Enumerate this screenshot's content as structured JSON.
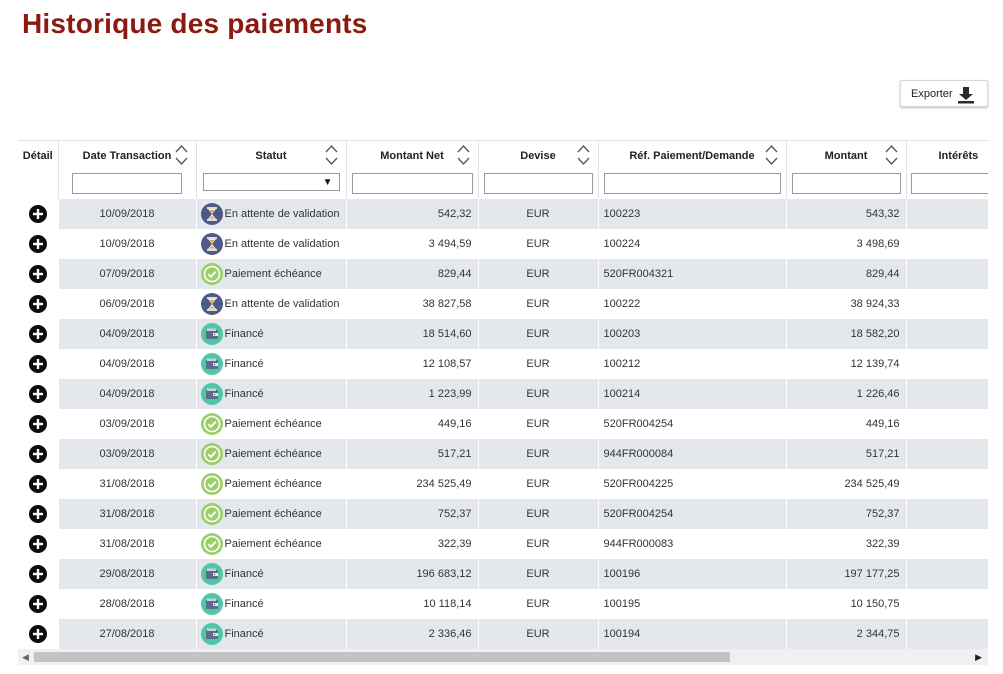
{
  "page": {
    "title": "Historique des paiements"
  },
  "toolbar": {
    "export_label": "Exporter"
  },
  "columns": {
    "detail": "Détail",
    "date": "Date Transaction",
    "status": "Statut",
    "net": "Montant Net",
    "devise": "Devise",
    "ref": "Réf. Paiement/Demande",
    "montant": "Montant",
    "interets": "Intérêts"
  },
  "filters": {
    "status_dropdown_arrow": "▼"
  },
  "icons": {
    "pending": "hourglass-icon",
    "paid": "checkmark-icon",
    "funded": "wallet-icon",
    "detail": "plus-circle-icon",
    "export": "download-icon"
  },
  "colors": {
    "title": "#8b1a10",
    "pending_bg": "#4d5a85",
    "check_bg": "#9ccf6a",
    "wallet_bg": "#4fc7a6"
  },
  "rows": [
    {
      "date": "10/09/2018",
      "status": "En attente de validation",
      "type": "pending",
      "net": "542,32",
      "devise": "EUR",
      "ref": "100223",
      "montant": "543,32"
    },
    {
      "date": "10/09/2018",
      "status": "En attente de validation",
      "type": "pending",
      "net": "3 494,59",
      "devise": "EUR",
      "ref": "100224",
      "montant": "3 498,69"
    },
    {
      "date": "07/09/2018",
      "status": "Paiement échéance",
      "type": "paid",
      "net": "829,44",
      "devise": "EUR",
      "ref": "520FR004321",
      "montant": "829,44"
    },
    {
      "date": "06/09/2018",
      "status": "En attente de validation",
      "type": "pending",
      "net": "38 827,58",
      "devise": "EUR",
      "ref": "100222",
      "montant": "38 924,33"
    },
    {
      "date": "04/09/2018",
      "status": "Financé",
      "type": "funded",
      "net": "18 514,60",
      "devise": "EUR",
      "ref": "100203",
      "montant": "18 582,20"
    },
    {
      "date": "04/09/2018",
      "status": "Financé",
      "type": "funded",
      "net": "12 108,57",
      "devise": "EUR",
      "ref": "100212",
      "montant": "12 139,74"
    },
    {
      "date": "04/09/2018",
      "status": "Financé",
      "type": "funded",
      "net": "1 223,99",
      "devise": "EUR",
      "ref": "100214",
      "montant": "1 226,46"
    },
    {
      "date": "03/09/2018",
      "status": "Paiement échéance",
      "type": "paid",
      "net": "449,16",
      "devise": "EUR",
      "ref": "520FR004254",
      "montant": "449,16"
    },
    {
      "date": "03/09/2018",
      "status": "Paiement échéance",
      "type": "paid",
      "net": "517,21",
      "devise": "EUR",
      "ref": "944FR000084",
      "montant": "517,21"
    },
    {
      "date": "31/08/2018",
      "status": "Paiement échéance",
      "type": "paid",
      "net": "234 525,49",
      "devise": "EUR",
      "ref": "520FR004225",
      "montant": "234 525,49"
    },
    {
      "date": "31/08/2018",
      "status": "Paiement échéance",
      "type": "paid",
      "net": "752,37",
      "devise": "EUR",
      "ref": "520FR004254",
      "montant": "752,37"
    },
    {
      "date": "31/08/2018",
      "status": "Paiement échéance",
      "type": "paid",
      "net": "322,39",
      "devise": "EUR",
      "ref": "944FR000083",
      "montant": "322,39"
    },
    {
      "date": "29/08/2018",
      "status": "Financé",
      "type": "funded",
      "net": "196 683,12",
      "devise": "EUR",
      "ref": "100196",
      "montant": "197 177,25"
    },
    {
      "date": "28/08/2018",
      "status": "Financé",
      "type": "funded",
      "net": "10 118,14",
      "devise": "EUR",
      "ref": "100195",
      "montant": "10 150,75"
    },
    {
      "date": "27/08/2018",
      "status": "Financé",
      "type": "funded",
      "net": "2 336,46",
      "devise": "EUR",
      "ref": "100194",
      "montant": "2 344,75"
    }
  ],
  "scrollbar": {
    "left_arrow": "◀",
    "right_arrow": "▶"
  }
}
